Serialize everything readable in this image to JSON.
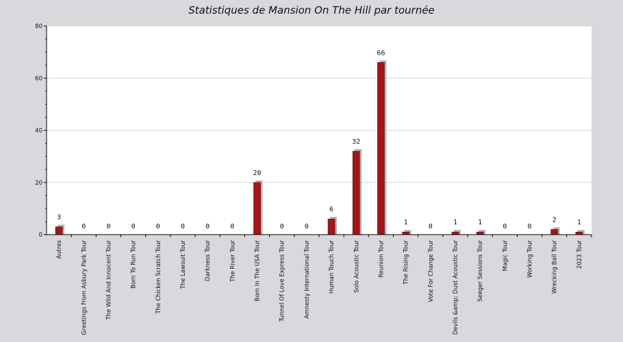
{
  "chart_data": {
    "type": "bar",
    "title": "Statistiques de Mansion On The Hill par tournée",
    "xlabel": "",
    "ylabel": "",
    "ylim": [
      0,
      80
    ],
    "yticks": [
      0,
      20,
      40,
      60,
      80
    ],
    "grid": true,
    "categories": [
      "Autres",
      "Greetings From Asbury Park Tour",
      "The Wild And Innocent Tour",
      "Born To Run Tour",
      "The Chicken Scratch Tour",
      "The Lawsuit Tour",
      "Darkness Tour",
      "The River Tour",
      "Born In The USA Tour",
      "Tunnel Of Love Express Tour",
      "Amnesty International Tour",
      "Human Touch Tour",
      "Solo Acoustic Tour",
      "Reunion Tour",
      "The Rising Tour",
      "Vote For Change Tour",
      "Devils &amp; Dust Acoustic Tour",
      "Seeger Sessions Tour",
      "Magic Tour",
      "Working Tour",
      "Wrecking Ball Tour",
      "2023 Tour"
    ],
    "values": [
      3,
      0,
      0,
      0,
      0,
      0,
      0,
      0,
      20,
      0,
      0,
      6,
      32,
      66,
      1,
      0,
      1,
      1,
      0,
      0,
      2,
      1
    ],
    "colors": {
      "bar": "#a51517",
      "shadow": "#b3b3b3",
      "plot_bg": "#ffffff",
      "grid": "#d4d4d4",
      "page_bg": "#d9d8dd"
    }
  }
}
